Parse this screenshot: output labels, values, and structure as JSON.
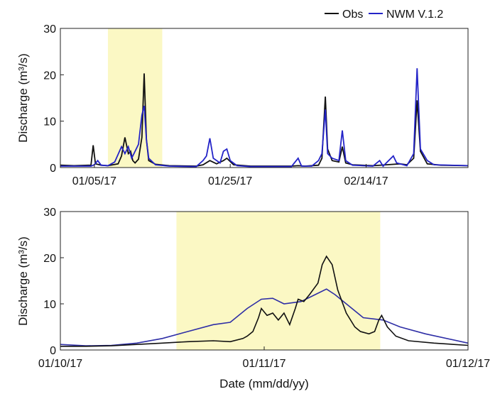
{
  "legend": {
    "placement": "top-right, above top panel",
    "entries": [
      {
        "label": "Obs",
        "color": "#111111"
      },
      {
        "label": "NWM V.1.2",
        "color": "#2424c8"
      }
    ]
  },
  "colors": {
    "obs": "#111111",
    "nwm": "#2424c8",
    "highlight": "#fbf8c4"
  },
  "chart_data": [
    {
      "type": "line",
      "panel": "top",
      "title": "",
      "xlabel": "",
      "ylabel": "Discharge (m³/s)",
      "x_unit": "date (mm/dd/yy)",
      "xlim": [
        "2016-12-31",
        "2017-03-01"
      ],
      "ylim": [
        0,
        30
      ],
      "yticks": [
        0,
        10,
        20,
        30
      ],
      "xticks": [
        {
          "date": "2017-01-05",
          "label": "01/05/17"
        },
        {
          "date": "2017-01-25",
          "label": "01/25/17"
        },
        {
          "date": "2017-02-14",
          "label": "02/14/17"
        }
      ],
      "grid": false,
      "highlight_range": [
        "2017-01-07T00:00",
        "2017-01-15T00:00"
      ],
      "series": [
        {
          "name": "Obs",
          "points": [
            [
              "2016-12-31T00:00",
              0.5
            ],
            [
              "2017-01-02T00:00",
              0.4
            ],
            [
              "2017-01-04T12:00",
              0.5
            ],
            [
              "2017-01-04T20:00",
              4.8
            ],
            [
              "2017-01-05T04:00",
              0.8
            ],
            [
              "2017-01-06T00:00",
              0.5
            ],
            [
              "2017-01-07T00:00",
              0.4
            ],
            [
              "2017-01-08T12:00",
              0.8
            ],
            [
              "2017-01-09T00:00",
              2.5
            ],
            [
              "2017-01-09T12:00",
              6.5
            ],
            [
              "2017-01-10T00:00",
              3.0
            ],
            [
              "2017-01-10T08:00",
              3.5
            ],
            [
              "2017-01-10T16:00",
              1.5
            ],
            [
              "2017-01-11T00:00",
              1.0
            ],
            [
              "2017-01-11T12:00",
              1.8
            ],
            [
              "2017-01-12T00:00",
              6.5
            ],
            [
              "2017-01-12T08:00",
              20.3
            ],
            [
              "2017-01-12T16:00",
              6.0
            ],
            [
              "2017-01-13T00:00",
              1.5
            ],
            [
              "2017-01-14T00:00",
              0.7
            ],
            [
              "2017-01-16T00:00",
              0.4
            ],
            [
              "2017-01-20T00:00",
              0.3
            ],
            [
              "2017-01-21T00:00",
              0.6
            ],
            [
              "2017-01-22T00:00",
              1.5
            ],
            [
              "2017-01-23T00:00",
              0.8
            ],
            [
              "2017-01-24T00:00",
              1.5
            ],
            [
              "2017-01-24T12:00",
              2.0
            ],
            [
              "2017-01-25T12:00",
              0.6
            ],
            [
              "2017-01-28T00:00",
              0.3
            ],
            [
              "2017-02-03T00:00",
              0.3
            ],
            [
              "2017-02-04T00:00",
              0.4
            ],
            [
              "2017-02-05T00:00",
              0.3
            ],
            [
              "2017-02-07T00:00",
              0.5
            ],
            [
              "2017-02-07T12:00",
              2.0
            ],
            [
              "2017-02-08T00:00",
              15.3
            ],
            [
              "2017-02-08T08:00",
              4.0
            ],
            [
              "2017-02-09T00:00",
              1.5
            ],
            [
              "2017-02-10T00:00",
              1.2
            ],
            [
              "2017-02-10T12:00",
              4.5
            ],
            [
              "2017-02-11T00:00",
              1.0
            ],
            [
              "2017-02-12T00:00",
              0.6
            ],
            [
              "2017-02-15T00:00",
              0.4
            ],
            [
              "2017-02-17T00:00",
              0.6
            ],
            [
              "2017-02-19T00:00",
              0.8
            ],
            [
              "2017-02-20T00:00",
              0.6
            ],
            [
              "2017-02-21T00:00",
              2.0
            ],
            [
              "2017-02-21T12:00",
              14.5
            ],
            [
              "2017-02-22T00:00",
              3.5
            ],
            [
              "2017-02-23T00:00",
              0.8
            ],
            [
              "2017-02-25T00:00",
              0.5
            ],
            [
              "2017-03-01T00:00",
              0.4
            ]
          ]
        },
        {
          "name": "NWM V.1.2",
          "points": [
            [
              "2016-12-31T00:00",
              0.3
            ],
            [
              "2017-01-02T00:00",
              0.3
            ],
            [
              "2017-01-04T12:00",
              0.3
            ],
            [
              "2017-01-05T00:00",
              0.6
            ],
            [
              "2017-01-05T12:00",
              1.5
            ],
            [
              "2017-01-06T00:00",
              0.5
            ],
            [
              "2017-01-07T00:00",
              0.4
            ],
            [
              "2017-01-08T00:00",
              1.2
            ],
            [
              "2017-01-09T00:00",
              4.5
            ],
            [
              "2017-01-09T12:00",
              3.0
            ],
            [
              "2017-01-10T00:00",
              4.5
            ],
            [
              "2017-01-10T12:00",
              2.0
            ],
            [
              "2017-01-11T00:00",
              3.5
            ],
            [
              "2017-01-11T12:00",
              5.0
            ],
            [
              "2017-01-12T00:00",
              11.3
            ],
            [
              "2017-01-12T08:00",
              13.3
            ],
            [
              "2017-01-12T16:00",
              6.0
            ],
            [
              "2017-01-13T00:00",
              2.0
            ],
            [
              "2017-01-14T00:00",
              0.6
            ],
            [
              "2017-01-16T00:00",
              0.3
            ],
            [
              "2017-01-20T00:00",
              0.2
            ],
            [
              "2017-01-21T00:00",
              1.5
            ],
            [
              "2017-01-21T12:00",
              2.5
            ],
            [
              "2017-01-22T00:00",
              6.3
            ],
            [
              "2017-01-22T12:00",
              2.0
            ],
            [
              "2017-01-23T12:00",
              1.0
            ],
            [
              "2017-01-24T00:00",
              3.5
            ],
            [
              "2017-01-24T12:00",
              4.0
            ],
            [
              "2017-01-25T00:00",
              1.5
            ],
            [
              "2017-01-26T00:00",
              0.4
            ],
            [
              "2017-01-28T00:00",
              0.2
            ],
            [
              "2017-02-03T00:00",
              0.2
            ],
            [
              "2017-02-04T00:00",
              2.0
            ],
            [
              "2017-02-04T12:00",
              0.3
            ],
            [
              "2017-02-06T00:00",
              0.3
            ],
            [
              "2017-02-07T00:00",
              1.5
            ],
            [
              "2017-02-07T12:00",
              3.0
            ],
            [
              "2017-02-08T00:00",
              12.5
            ],
            [
              "2017-02-08T08:00",
              3.0
            ],
            [
              "2017-02-09T00:00",
              2.0
            ],
            [
              "2017-02-10T00:00",
              1.5
            ],
            [
              "2017-02-10T12:00",
              8.0
            ],
            [
              "2017-02-11T00:00",
              1.5
            ],
            [
              "2017-02-12T00:00",
              0.5
            ],
            [
              "2017-02-15T00:00",
              0.3
            ],
            [
              "2017-02-16T00:00",
              1.5
            ],
            [
              "2017-02-16T12:00",
              0.3
            ],
            [
              "2017-02-18T00:00",
              2.5
            ],
            [
              "2017-02-18T12:00",
              1.0
            ],
            [
              "2017-02-20T00:00",
              0.4
            ],
            [
              "2017-02-21T00:00",
              3.0
            ],
            [
              "2017-02-21T12:00",
              21.4
            ],
            [
              "2017-02-22T00:00",
              4.0
            ],
            [
              "2017-02-23T00:00",
              1.5
            ],
            [
              "2017-02-24T00:00",
              0.6
            ],
            [
              "2017-03-01T00:00",
              0.4
            ]
          ]
        }
      ]
    },
    {
      "type": "line",
      "panel": "bottom",
      "title": "",
      "xlabel": "Date (mm/dd/yy)",
      "ylabel": "Discharge (m³/s)",
      "xlim": [
        "2017-01-10T00:00",
        "2017-01-12T00:00"
      ],
      "ylim": [
        0,
        30
      ],
      "yticks": [
        0,
        10,
        20,
        30
      ],
      "xticks": [
        {
          "date": "2017-01-10T00:00",
          "label": "01/10/17"
        },
        {
          "date": "2017-01-11T00:00",
          "label": "01/11/17"
        },
        {
          "date": "2017-01-12T00:00",
          "label": "01/12/17"
        }
      ],
      "grid": false,
      "highlight_range": [
        "2017-01-10T13:40",
        "2017-01-11T13:40"
      ],
      "series": [
        {
          "name": "Obs",
          "points": [
            [
              "2017-01-10T00:00",
              0.8
            ],
            [
              "2017-01-10T03:00",
              0.8
            ],
            [
              "2017-01-10T06:00",
              0.9
            ],
            [
              "2017-01-10T09:00",
              1.2
            ],
            [
              "2017-01-10T12:00",
              1.5
            ],
            [
              "2017-01-10T15:00",
              1.8
            ],
            [
              "2017-01-10T18:00",
              2.0
            ],
            [
              "2017-01-10T20:00",
              1.8
            ],
            [
              "2017-01-10T21:30",
              2.5
            ],
            [
              "2017-01-10T22:00",
              3.0
            ],
            [
              "2017-01-10T22:40",
              4.0
            ],
            [
              "2017-01-10T23:20",
              7.0
            ],
            [
              "2017-01-10T23:40",
              9.0
            ],
            [
              "2017-01-11T00:20",
              7.5
            ],
            [
              "2017-01-11T01:00",
              8.0
            ],
            [
              "2017-01-11T01:40",
              6.5
            ],
            [
              "2017-01-11T02:20",
              8.0
            ],
            [
              "2017-01-11T03:00",
              5.5
            ],
            [
              "2017-01-11T03:40",
              9.0
            ],
            [
              "2017-01-11T04:00",
              11.0
            ],
            [
              "2017-01-11T04:40",
              10.5
            ],
            [
              "2017-01-11T05:20",
              12.0
            ],
            [
              "2017-01-11T06:20",
              14.5
            ],
            [
              "2017-01-11T06:50",
              18.5
            ],
            [
              "2017-01-11T07:20",
              20.3
            ],
            [
              "2017-01-11T08:00",
              18.5
            ],
            [
              "2017-01-11T08:40",
              13.0
            ],
            [
              "2017-01-11T09:40",
              8.0
            ],
            [
              "2017-01-11T10:40",
              5.0
            ],
            [
              "2017-01-11T11:20",
              4.0
            ],
            [
              "2017-01-11T12:20",
              3.5
            ],
            [
              "2017-01-11T13:00",
              4.0
            ],
            [
              "2017-01-11T13:30",
              6.5
            ],
            [
              "2017-01-11T13:50",
              7.5
            ],
            [
              "2017-01-11T14:30",
              5.0
            ],
            [
              "2017-01-11T15:30",
              3.0
            ],
            [
              "2017-01-11T17:00",
              2.0
            ],
            [
              "2017-01-11T20:00",
              1.5
            ],
            [
              "2017-01-12T00:00",
              1.0
            ]
          ]
        },
        {
          "name": "NWM V.1.2",
          "points": [
            [
              "2017-01-10T00:00",
              1.2
            ],
            [
              "2017-01-10T03:00",
              0.9
            ],
            [
              "2017-01-10T06:00",
              1.0
            ],
            [
              "2017-01-10T09:00",
              1.5
            ],
            [
              "2017-01-10T12:00",
              2.5
            ],
            [
              "2017-01-10T15:00",
              4.0
            ],
            [
              "2017-01-10T18:00",
              5.5
            ],
            [
              "2017-01-10T20:00",
              6.0
            ],
            [
              "2017-01-10T22:00",
              9.0
            ],
            [
              "2017-01-10T23:40",
              11.0
            ],
            [
              "2017-01-11T01:00",
              11.2
            ],
            [
              "2017-01-11T02:20",
              10.0
            ],
            [
              "2017-01-11T04:20",
              10.5
            ],
            [
              "2017-01-11T06:00",
              12.0
            ],
            [
              "2017-01-11T07:20",
              13.2
            ],
            [
              "2017-01-11T08:20",
              12.0
            ],
            [
              "2017-01-11T10:00",
              9.5
            ],
            [
              "2017-01-11T11:40",
              7.0
            ],
            [
              "2017-01-11T14:00",
              6.5
            ],
            [
              "2017-01-11T16:00",
              5.0
            ],
            [
              "2017-01-11T19:00",
              3.5
            ],
            [
              "2017-01-12T00:00",
              1.5
            ]
          ]
        }
      ]
    }
  ]
}
